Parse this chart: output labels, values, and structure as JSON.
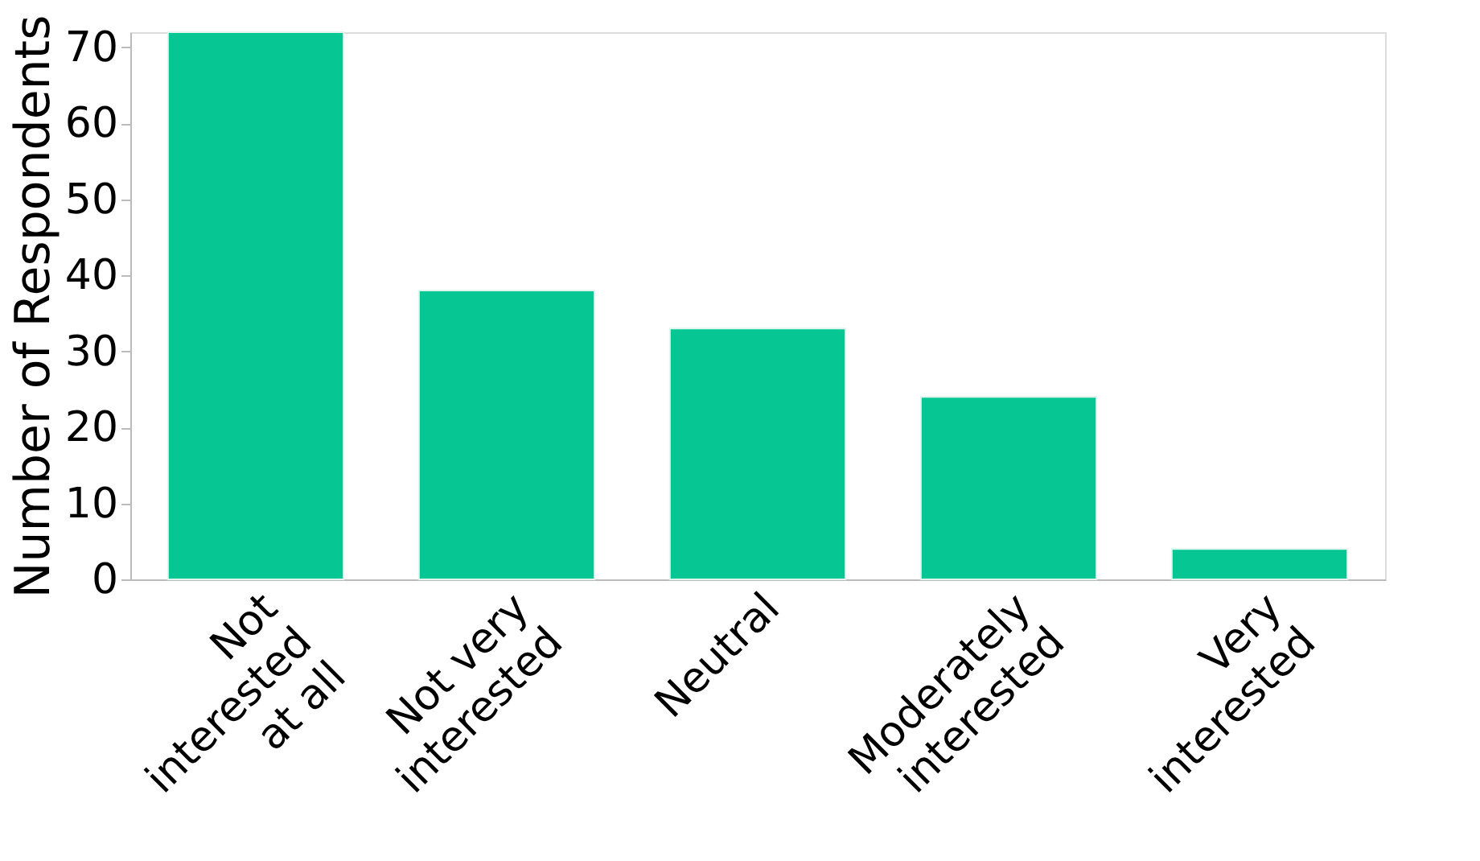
{
  "chart_data": {
    "type": "bar",
    "ylabel": "Number of Respondents",
    "categories": [
      "Not\ninterested\nat all",
      "Not very\ninterested",
      "Neutral",
      "Moderately\ninterested",
      "Very\ninterested"
    ],
    "values": [
      72,
      38,
      33,
      24,
      4
    ],
    "color": "#06c793",
    "ylim": [
      0,
      72
    ],
    "yticks": [
      0,
      10,
      20,
      30,
      40,
      50,
      60,
      70
    ],
    "grid": false
  }
}
